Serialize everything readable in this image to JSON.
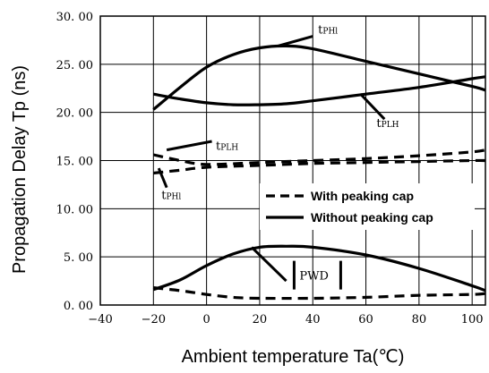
{
  "chart_data": {
    "type": "line",
    "xlabel": "Ambient temperature Ta(℃)",
    "ylabel": "Propagation Delay Tp (ns)",
    "xlim": [
      -40,
      105
    ],
    "ylim": [
      0,
      30
    ],
    "xticks": [
      -40,
      -20,
      0,
      20,
      40,
      60,
      80,
      100
    ],
    "xtick_labels": [
      "−40",
      "−20",
      "0",
      "20",
      "40",
      "60",
      "80",
      "100"
    ],
    "yticks": [
      0,
      5,
      10,
      15,
      20,
      25,
      30
    ],
    "ytick_labels": [
      "0. 00",
      "5. 00",
      "10. 00",
      "15. 00",
      "20. 00",
      "25. 00",
      "30. 00"
    ],
    "grid": true,
    "legend": {
      "placement": "center-right",
      "entries": [
        {
          "label": "With peaking cap",
          "style": "dashed"
        },
        {
          "label": "Without peaking cap",
          "style": "solid"
        }
      ]
    },
    "series": [
      {
        "style": "solid",
        "x": [
          -20,
          -10,
          0,
          10,
          20,
          30,
          40,
          60,
          80,
          100,
          105
        ],
        "y": [
          20.3,
          22.6,
          24.7,
          26.0,
          26.7,
          26.9,
          26.6,
          25.3,
          24.0,
          22.7,
          22.3
        ]
      },
      {
        "style": "solid",
        "x": [
          -20,
          -10,
          0,
          10,
          20,
          30,
          40,
          60,
          80,
          100,
          105
        ],
        "y": [
          21.9,
          21.4,
          21.0,
          20.8,
          20.8,
          20.9,
          21.2,
          21.9,
          22.6,
          23.5,
          23.7
        ]
      },
      {
        "style": "dashed",
        "x": [
          -20,
          -10,
          0,
          20,
          40,
          60,
          80,
          100,
          105
        ],
        "y": [
          15.6,
          15.0,
          14.6,
          14.8,
          15.0,
          15.2,
          15.5,
          15.9,
          16.1
        ]
      },
      {
        "style": "dashed",
        "x": [
          -20,
          -10,
          0,
          20,
          40,
          60,
          80,
          100,
          105
        ],
        "y": [
          13.7,
          14.0,
          14.3,
          14.5,
          14.7,
          14.8,
          14.9,
          15.0,
          15.0
        ]
      },
      {
        "style": "solid",
        "x": [
          -20,
          -10,
          0,
          10,
          20,
          30,
          40,
          60,
          80,
          100,
          105
        ],
        "y": [
          1.6,
          2.6,
          4.1,
          5.3,
          6.0,
          6.1,
          6.0,
          5.2,
          3.8,
          2.0,
          1.5
        ]
      },
      {
        "style": "dashed",
        "x": [
          -20,
          -10,
          0,
          10,
          20,
          40,
          60,
          80,
          100,
          105
        ],
        "y": [
          1.8,
          1.5,
          1.1,
          0.8,
          0.7,
          0.7,
          0.8,
          1.0,
          1.1,
          1.2
        ]
      }
    ],
    "annotations": [
      {
        "id": "tphl-upper",
        "base": "t",
        "sub": "PHl",
        "x": 42,
        "y": 28.2,
        "arrow_to": [
          27,
          26.9
        ],
        "arrow_from": [
          40,
          27.9
        ]
      },
      {
        "id": "tplh-upper",
        "base": "t",
        "sub": "PLH",
        "x": 64,
        "y": 18.5,
        "arrow_to": [
          58,
          21.9
        ],
        "arrow_from": [
          67,
          19.3
        ]
      },
      {
        "id": "tplh-lower",
        "base": "t",
        "sub": "PLH",
        "x": 3.5,
        "y": 16.1,
        "arrow_to": [
          -15,
          16.1
        ],
        "arrow_from": [
          2,
          17.0
        ]
      },
      {
        "id": "tphl-lower",
        "base": "t",
        "sub": "PHl",
        "x": -17,
        "y": 11.0,
        "arrow_to": [
          -18,
          14.2
        ],
        "arrow_from": [
          -15,
          12.2
        ]
      },
      {
        "id": "pwd",
        "base": "PWD",
        "sub": "",
        "x": 35,
        "y": 3.1,
        "arrow_to": [
          17,
          6.0
        ],
        "arrow_from": [
          30,
          2.5
        ]
      }
    ]
  }
}
